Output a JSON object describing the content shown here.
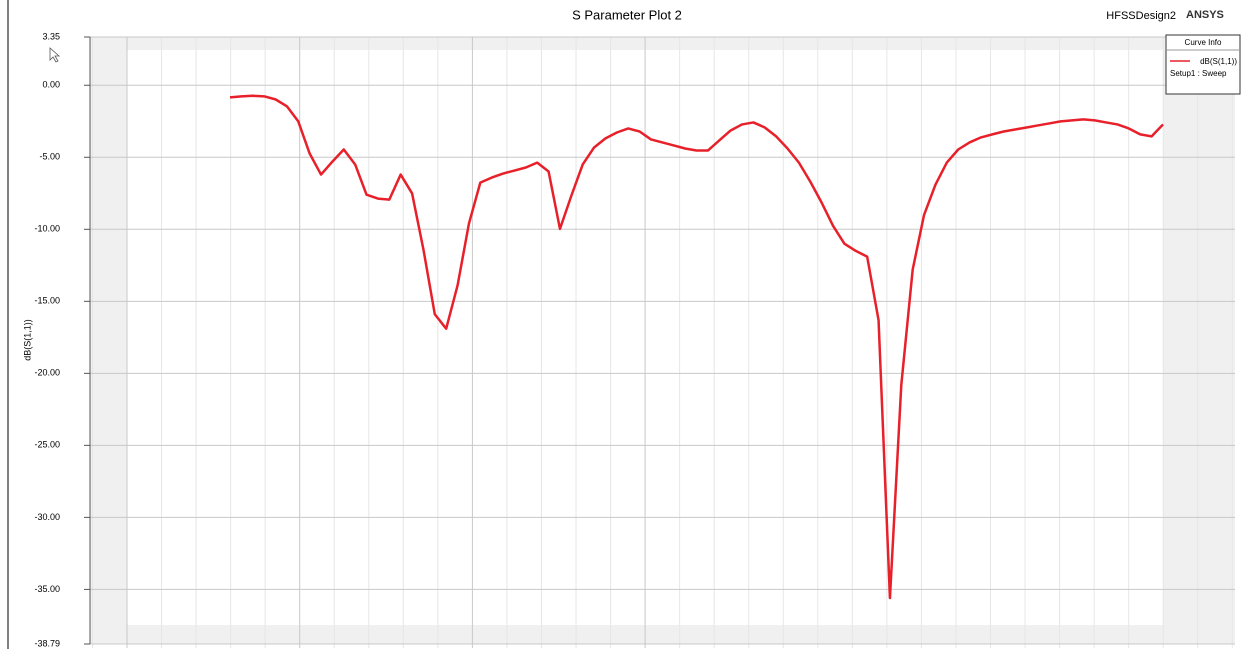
{
  "chart_data": {
    "type": "line",
    "title": "S Parameter Plot 2",
    "design_label": "HFSSDesign2",
    "brand": "ANSYS",
    "ylabel": "dB(S(1,1))",
    "legend": {
      "title": "Curve Info",
      "sweep": "Setup1 : Sweep",
      "corner": "top-right"
    },
    "ylim": [
      -38.79,
      3.35
    ],
    "yticks": [
      3.35,
      {
        "value": 0,
        "label": "0.00"
      },
      {
        "value": -5,
        "label": "-5.00"
      },
      {
        "value": -10,
        "label": "-10.00"
      },
      {
        "value": -15,
        "label": "-15.00"
      },
      {
        "value": -20,
        "label": "-20.00"
      },
      {
        "value": -25,
        "label": "-25.00"
      },
      {
        "value": -30,
        "label": "-30.00"
      },
      {
        "value": -35,
        "label": "-35.00"
      },
      -38.79
    ],
    "grid": true,
    "categories": [
      null,
      null,
      null,
      null,
      null,
      null,
      null,
      null,
      null,
      null,
      null,
      null,
      null,
      null,
      null,
      null,
      null,
      null,
      null,
      null,
      null,
      null,
      null,
      null,
      null,
      null,
      null,
      null,
      null,
      null,
      null,
      null,
      null,
      null,
      null,
      null,
      null,
      null,
      null,
      null,
      null,
      null,
      null,
      null,
      null,
      null,
      null,
      null,
      null,
      null,
      null,
      null,
      null,
      null,
      null,
      null,
      null,
      null,
      null,
      null,
      null,
      null,
      null,
      null,
      null,
      null,
      null,
      null,
      null,
      null,
      null,
      null,
      null,
      null,
      null,
      null,
      null,
      null,
      null,
      null,
      null,
      null,
      null
    ],
    "series": [
      {
        "name": "dB(S(1,1))",
        "color": "#e8202a",
        "values": [
          -0.84,
          -0.77,
          -0.73,
          -0.77,
          -0.98,
          -1.46,
          -2.51,
          -4.74,
          -6.2,
          -5.3,
          -4.46,
          -5.5,
          -7.6,
          -7.87,
          -7.94,
          -6.2,
          -7.5,
          -11.4,
          -15.9,
          -16.9,
          -13.9,
          -9.6,
          -6.76,
          -6.41,
          -6.13,
          -5.92,
          -5.71,
          -5.37,
          -5.99,
          -9.97,
          -7.67,
          -5.5,
          -4.32,
          -3.69,
          -3.28,
          -3.0,
          -3.21,
          -3.76,
          -3.97,
          -4.18,
          -4.39,
          -4.53,
          -4.53,
          -3.83,
          -3.14,
          -2.72,
          -2.58,
          -2.93,
          -3.55,
          -4.39,
          -5.37,
          -6.69,
          -8.15,
          -9.76,
          -11.0,
          -11.5,
          -11.9,
          -16.3,
          -35.6,
          -20.8,
          -12.8,
          -9.0,
          -6.9,
          -5.37,
          -4.46,
          -3.97,
          -3.62,
          -3.41,
          -3.21,
          -3.07,
          -2.93,
          -2.79,
          -2.65,
          -2.51,
          -2.44,
          -2.37,
          -2.44,
          -2.58,
          -2.72,
          -3.0,
          -3.41,
          -3.55,
          -2.72
        ]
      }
    ]
  }
}
